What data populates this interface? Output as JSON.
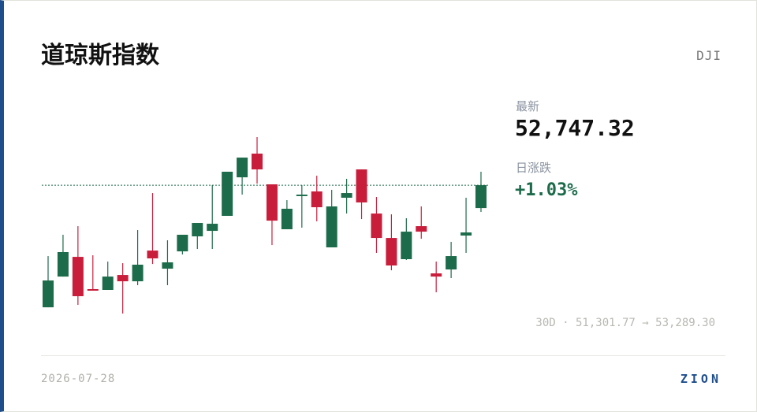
{
  "header": {
    "title": "道琼斯指数",
    "symbol": "DJI"
  },
  "stats": {
    "latest_label": "最新",
    "latest": "52,747.32",
    "change_label": "日涨跌",
    "change": "+1.03%"
  },
  "range_text": "30D · 51,301.77 → 53,289.30",
  "footer": {
    "date": "2026-07-28",
    "brand": "ZION"
  },
  "chart_data": {
    "type": "candlestick",
    "up_color": "#1c6b4a",
    "down_color": "#c81e3c",
    "ylim": [
      51301.77,
      53289.3
    ],
    "reference_line": 52747.32,
    "open": [
      51372,
      51718,
      51940,
      51577,
      51568,
      51736,
      51665,
      52011,
      51807,
      52002,
      52171,
      52233,
      52402,
      52836,
      53103,
      52757,
      52251,
      52624,
      52677,
      52047,
      52606,
      52925,
      52428,
      52153,
      51914,
      52286,
      51754,
      51798,
      52180,
      52490
    ],
    "high": [
      51949,
      52189,
      52286,
      51958,
      51887,
      51869,
      52242,
      52659,
      52127,
      52189,
      52322,
      52748,
      52899,
      53058,
      53289.3,
      52757,
      52579,
      52748,
      52854,
      52695,
      52819,
      52925,
      52615,
      52419,
      52375,
      52508,
      51887,
      52109,
      52606,
      52899
    ],
    "low": [
      51372,
      51718,
      51399,
      51559,
      51568,
      51301.77,
      51621,
      51860,
      51621,
      51967,
      52029,
      52029,
      52402,
      52641,
      52765,
      52073,
      52251,
      52269,
      52340,
      52047,
      52428,
      52366,
      51985,
      51789,
      51905,
      52144,
      51541,
      51701,
      51985,
      52446
    ],
    "close": [
      51674,
      51994,
      51497,
      51559,
      51718,
      51665,
      51852,
      51923,
      51878,
      52189,
      52322,
      52313,
      52899,
      53058,
      52925,
      52348,
      52482,
      52641,
      52499,
      52508,
      52659,
      52553,
      52153,
      51843,
      52224,
      52224,
      51718,
      51949,
      52215,
      52747.32
    ]
  }
}
